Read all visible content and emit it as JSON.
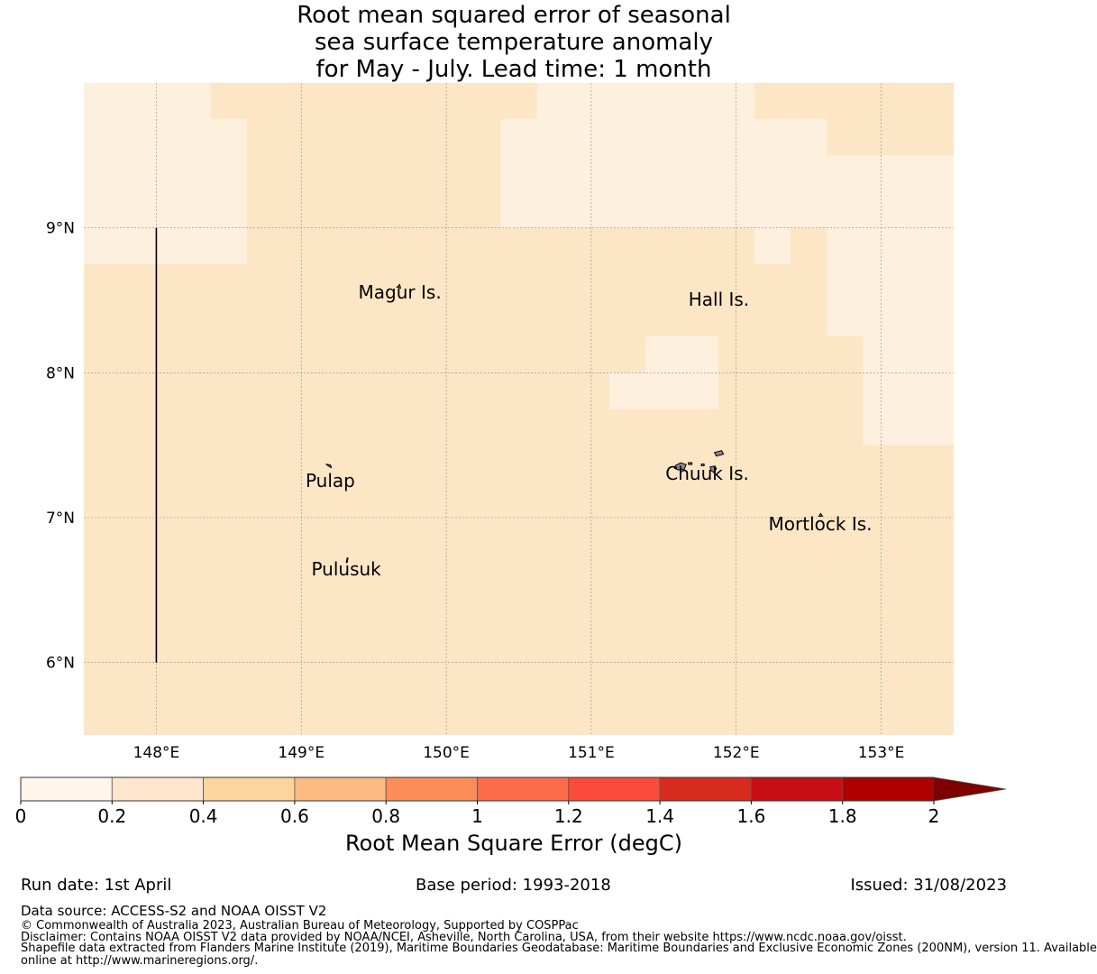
{
  "title_lines": [
    "Root mean squared error of seasonal",
    "sea surface temperature anomaly",
    "for May - July. Lead time: 1 month"
  ],
  "map": {
    "lon_range": [
      147.5,
      153.5
    ],
    "lat_range": [
      5.5,
      10.0
    ],
    "lon_ticks": [
      {
        "value": 148,
        "label": "148°E"
      },
      {
        "value": 149,
        "label": "149°E"
      },
      {
        "value": 150,
        "label": "150°E"
      },
      {
        "value": 151,
        "label": "151°E"
      },
      {
        "value": 152,
        "label": "152°E"
      },
      {
        "value": 153,
        "label": "153°E"
      }
    ],
    "lat_ticks": [
      {
        "value": 9,
        "label": "9°N"
      },
      {
        "value": 8,
        "label": "8°N"
      },
      {
        "value": 7,
        "label": "7°N"
      },
      {
        "value": 6,
        "label": "6°N"
      }
    ],
    "grid": true,
    "base_fill": "#fde6c6",
    "low_fill": "#fef0de",
    "grid_cells_low_error": [
      [
        147.5,
        9.75,
        148.375,
        10.0
      ],
      [
        147.5,
        8.75,
        148.625,
        9.75
      ],
      [
        150.375,
        9.0,
        150.625,
        9.75
      ],
      [
        150.625,
        9.0,
        152.125,
        10.0
      ],
      [
        152.125,
        8.75,
        152.375,
        9.0
      ],
      [
        152.125,
        9.0,
        152.375,
        9.75
      ],
      [
        152.375,
        9.0,
        152.625,
        9.75
      ],
      [
        152.625,
        8.25,
        153.5,
        9.5
      ],
      [
        152.625,
        9.0,
        153.5,
        9.5
      ],
      [
        152.875,
        7.5,
        153.5,
        8.25
      ],
      [
        151.375,
        7.75,
        151.875,
        8.25
      ],
      [
        151.125,
        7.75,
        151.875,
        8.0
      ]
    ],
    "boundary_line": {
      "lon": 148,
      "lat_from": 6.0,
      "lat_to": 9.0
    },
    "islands": [
      {
        "name": "Magur Is.",
        "lon": 149.68,
        "lat": 8.6
      },
      {
        "name": "Hall Is.",
        "lon": 151.88,
        "lat": 8.55
      },
      {
        "name": "Pulap",
        "lon": 149.2,
        "lat": 7.3
      },
      {
        "name": "Chuuk Is.",
        "lon": 151.8,
        "lat": 7.35
      },
      {
        "name": "Mortlock Is.",
        "lon": 152.58,
        "lat": 7.0
      },
      {
        "name": "Pulusuk",
        "lon": 149.31,
        "lat": 6.69
      }
    ]
  },
  "colorbar": {
    "bounds": [
      0,
      0.2,
      0.4,
      0.6,
      0.8,
      1,
      1.2,
      1.4,
      1.6,
      1.8,
      2
    ],
    "tick_labels": [
      "0",
      "0.2",
      "0.4",
      "0.6",
      "0.8",
      "1",
      "1.2",
      "1.4",
      "1.6",
      "1.8",
      "2"
    ],
    "colors": [
      "#fff5eb",
      "#fee6ce",
      "#fdd49e",
      "#fdbb84",
      "#fc8d59",
      "#fc6b4a",
      "#fb4b3a",
      "#d82b20",
      "#c90f16",
      "#b00000"
    ],
    "extend_color": "#7f0000",
    "label": "Root Mean Square Error (degC)"
  },
  "footer": {
    "run_date": "Run date: 1st April",
    "base_period": "Base period: 1993-2018",
    "issued": "Issued: 31/08/2023",
    "data_source": "Data source: ACCESS-S2 and NOAA OISST V2",
    "copyright": "© Commonwealth of Australia 2023, Australian Bureau of Meteorology, Supported by COSPPac",
    "disclaimer": "Disclaimer: Contains NOAA OISST V2 data provided by NOAA/NCEI, Asheville, North Carolina, USA, from their website https://www.ncdc.noaa.gov/oisst.",
    "shapefile_line1": "Shapefile data extracted from Flanders Marine Institute (2019), Maritime Boundaries Geodatabase: Maritime Boundaries and Exclusive Economic Zones (200NM), version 11. Available",
    "shapefile_line2": "online at http://www.marineregions.org/."
  }
}
